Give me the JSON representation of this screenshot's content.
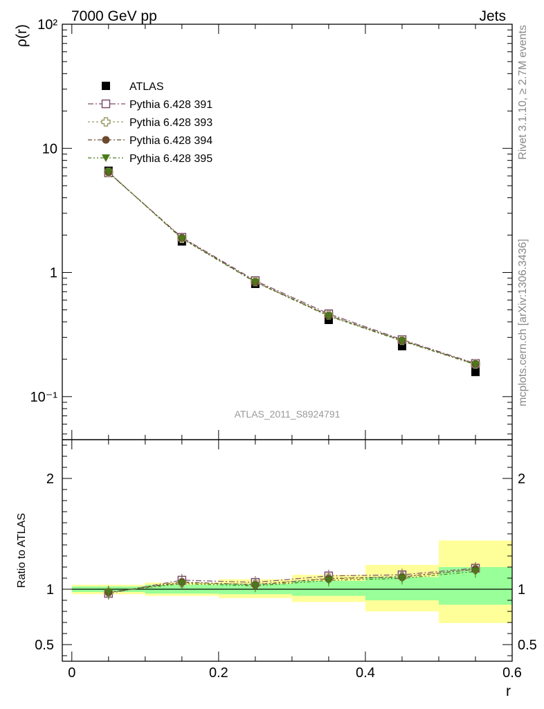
{
  "header": {
    "left": "7000 GeV pp",
    "right": "Jets"
  },
  "side_text": {
    "top": "Rivet 3.1.10, ≥ 2.7M events",
    "bottom": "mcplots.cern.ch [arXiv:1306.3436]"
  },
  "watermark": "ATLAS_2011_S8924791",
  "chart_data": [
    {
      "type": "scatter",
      "panel": "main",
      "ylabel": "ρ(r)",
      "yscale": "log",
      "xlim": [
        -0.013,
        0.6
      ],
      "ylim": [
        0.045,
        100
      ],
      "yticks": [
        "10⁻¹",
        "1",
        "10",
        "10²"
      ],
      "x": [
        0.05,
        0.15,
        0.25,
        0.35,
        0.45,
        0.55
      ],
      "legend_position": "top-left",
      "series": [
        {
          "name": "ATLAS",
          "marker": "square-filled",
          "color": "#000000",
          "values": [
            6.6,
            1.78,
            0.81,
            0.415,
            0.255,
            0.158
          ]
        },
        {
          "name": "Pythia 6.428 391",
          "marker": "square-open",
          "color": "#7b4b6c",
          "values": [
            6.35,
            1.92,
            0.86,
            0.465,
            0.288,
            0.185
          ]
        },
        {
          "name": "Pythia 6.428 393",
          "marker": "cross-open",
          "color": "#9a9a66",
          "values": [
            6.4,
            1.88,
            0.845,
            0.455,
            0.284,
            0.183
          ]
        },
        {
          "name": "Pythia 6.428 394",
          "marker": "circle-filled",
          "color": "#6b4a2f",
          "values": [
            6.42,
            1.9,
            0.84,
            0.45,
            0.283,
            0.183
          ]
        },
        {
          "name": "Pythia 6.428 395",
          "marker": "triangle-down-filled",
          "color": "#4a7a1a",
          "values": [
            6.45,
            1.87,
            0.835,
            0.445,
            0.28,
            0.181
          ]
        }
      ]
    },
    {
      "type": "scatter",
      "panel": "ratio",
      "xlabel": "r",
      "ylabel": "Ratio to ATLAS",
      "xlim": [
        -0.013,
        0.6
      ],
      "ylim": [
        0.35,
        2.35
      ],
      "xticks": [
        "0",
        "0.2",
        "0.4",
        "0.6"
      ],
      "yticks": [
        "0.5",
        "1",
        "2"
      ],
      "x": [
        0.05,
        0.15,
        0.25,
        0.35,
        0.45,
        0.55
      ],
      "bands": {
        "edges": [
          0.0,
          0.1,
          0.2,
          0.3,
          0.4,
          0.5,
          0.6
        ],
        "stat_color": "#99ff99",
        "total_color": "#ffff99",
        "stat": [
          [
            0.975,
            1.025
          ],
          [
            0.96,
            1.04
          ],
          [
            0.955,
            1.05
          ],
          [
            0.94,
            1.075
          ],
          [
            0.9,
            1.11
          ],
          [
            0.86,
            1.2
          ]
        ],
        "total": [
          [
            0.955,
            1.04
          ],
          [
            0.94,
            1.06
          ],
          [
            0.92,
            1.09
          ],
          [
            0.885,
            1.13
          ],
          [
            0.8,
            1.22
          ],
          [
            0.695,
            1.44
          ]
        ]
      },
      "series": [
        {
          "name": "Pythia 6.428 391",
          "values": [
            0.962,
            1.082,
            1.062,
            1.12,
            1.13,
            1.19
          ]
        },
        {
          "name": "Pythia 6.428 393",
          "values": [
            0.97,
            1.058,
            1.045,
            1.1,
            1.115,
            1.18
          ]
        },
        {
          "name": "Pythia 6.428 394",
          "values": [
            0.972,
            1.065,
            1.04,
            1.095,
            1.11,
            1.18
          ]
        },
        {
          "name": "Pythia 6.428 395",
          "values": [
            0.975,
            1.05,
            1.03,
            1.08,
            1.098,
            1.16
          ]
        }
      ]
    }
  ]
}
